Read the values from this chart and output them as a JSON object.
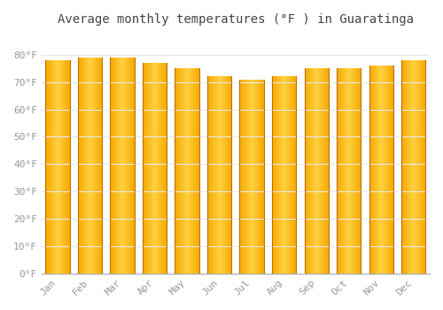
{
  "months": [
    "Jan",
    "Feb",
    "Mar",
    "Apr",
    "May",
    "Jun",
    "Jul",
    "Aug",
    "Sep",
    "Oct",
    "Nov",
    "Dec"
  ],
  "values": [
    78,
    79,
    79,
    77,
    75,
    72,
    71,
    72,
    75,
    75,
    76,
    78
  ],
  "bar_color_outer": "#F5A800",
  "bar_color_inner": "#FFD040",
  "background_color": "#FFFFFF",
  "grid_color": "#E8E8E8",
  "title": "Average monthly temperatures (°F ) in Guaratinga",
  "title_fontsize": 10,
  "ylabel_ticks": [
    0,
    10,
    20,
    30,
    40,
    50,
    60,
    70,
    80
  ],
  "ylim": [
    0,
    88
  ],
  "tick_label_color": "#999999",
  "font_family": "monospace"
}
